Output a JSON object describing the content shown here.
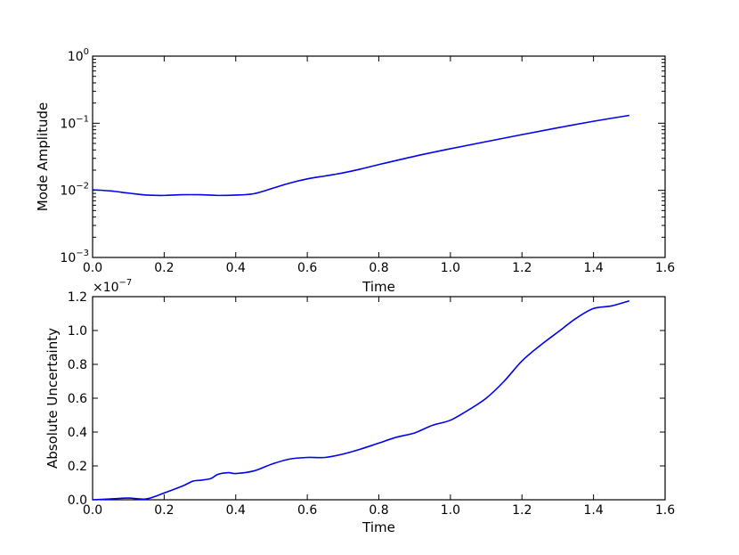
{
  "colors": {
    "line": "#0000ee",
    "axes": "#000000",
    "background": "#ffffff"
  },
  "chart_data": [
    {
      "type": "line",
      "title": "",
      "xlabel": "Time",
      "ylabel": "Mode Amplitude",
      "xlim": [
        0.0,
        1.6
      ],
      "ylim": [
        0.001,
        1.0
      ],
      "yscale": "log",
      "grid": false,
      "xticks": [
        "0.0",
        "0.2",
        "0.4",
        "0.6",
        "0.8",
        "1.0",
        "1.2",
        "1.4",
        "1.6"
      ],
      "yticks": [
        {
          "value": 0.001,
          "base": "10",
          "exp": "−3"
        },
        {
          "value": 0.01,
          "base": "10",
          "exp": "−2"
        },
        {
          "value": 0.1,
          "base": "10",
          "exp": "−1"
        },
        {
          "value": 1.0,
          "base": "10",
          "exp": "0"
        }
      ],
      "x": [
        0.0,
        0.05,
        0.1,
        0.15,
        0.2,
        0.25,
        0.3,
        0.35,
        0.4,
        0.45,
        0.5,
        0.55,
        0.6,
        0.65,
        0.7,
        0.75,
        0.8,
        0.9,
        1.0,
        1.1,
        1.2,
        1.3,
        1.4,
        1.5
      ],
      "y": [
        0.0102,
        0.0098,
        0.0091,
        0.0085,
        0.0084,
        0.0086,
        0.0086,
        0.0084,
        0.0085,
        0.0089,
        0.0106,
        0.0128,
        0.0148,
        0.0164,
        0.0182,
        0.0208,
        0.0242,
        0.0322,
        0.0417,
        0.0532,
        0.0677,
        0.0855,
        0.107,
        0.131
      ]
    },
    {
      "type": "line",
      "title": "",
      "xlabel": "Time",
      "ylabel": "Absolute Uncertainty",
      "xlim": [
        0.0,
        1.6
      ],
      "ylim": [
        0.0,
        1.2
      ],
      "offset_text": {
        "base": "×10",
        "exp": "−7"
      },
      "grid": false,
      "xticks": [
        "0.0",
        "0.2",
        "0.4",
        "0.6",
        "0.8",
        "1.0",
        "1.2",
        "1.4",
        "1.6"
      ],
      "yticks": [
        "0.0",
        "0.2",
        "0.4",
        "0.6",
        "0.8",
        "1.0",
        "1.2"
      ],
      "x": [
        0.0,
        0.05,
        0.1,
        0.15,
        0.2,
        0.25,
        0.28,
        0.3,
        0.33,
        0.35,
        0.38,
        0.4,
        0.45,
        0.5,
        0.55,
        0.6,
        0.65,
        0.7,
        0.75,
        0.8,
        0.85,
        0.9,
        0.95,
        1.0,
        1.05,
        1.1,
        1.15,
        1.2,
        1.25,
        1.3,
        1.35,
        1.4,
        1.45,
        1.5
      ],
      "y": [
        0.0,
        0.005,
        0.01,
        0.005,
        0.04,
        0.08,
        0.11,
        0.115,
        0.125,
        0.15,
        0.16,
        0.155,
        0.17,
        0.21,
        0.24,
        0.25,
        0.25,
        0.27,
        0.3,
        0.335,
        0.37,
        0.395,
        0.44,
        0.47,
        0.53,
        0.6,
        0.7,
        0.82,
        0.91,
        0.99,
        1.07,
        1.13,
        1.145,
        1.175
      ]
    }
  ]
}
